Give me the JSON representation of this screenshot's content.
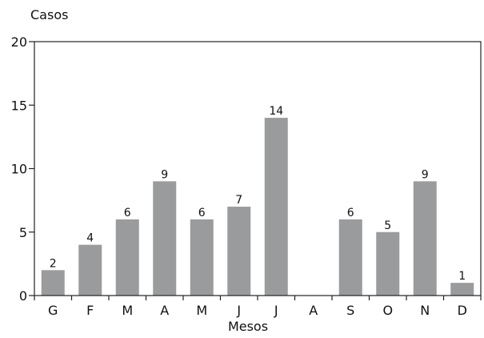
{
  "chart_data": {
    "type": "bar",
    "title": "",
    "xlabel": "Mesos",
    "ylabel": "Casos",
    "ylim": [
      0,
      20
    ],
    "yticks": [
      0,
      5,
      10,
      15,
      20
    ],
    "categories": [
      "G",
      "F",
      "M",
      "A",
      "M",
      "J",
      "J",
      "A",
      "S",
      "O",
      "N",
      "D"
    ],
    "values": [
      2,
      4,
      6,
      9,
      6,
      7,
      14,
      0,
      6,
      5,
      9,
      1
    ],
    "data_labels": [
      "2",
      "4",
      "6",
      "9",
      "6",
      "7",
      "14",
      "",
      "6",
      "5",
      "9",
      "1"
    ],
    "bar_color": "#9a9b9d",
    "grid": false,
    "legend": false
  }
}
